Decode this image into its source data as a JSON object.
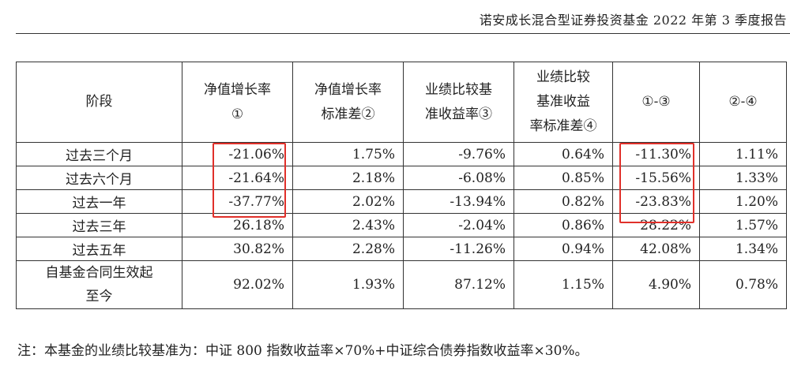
{
  "document": {
    "header_title": "诺安成长混合型证券投资基金 2022 年第 3 季度报告"
  },
  "table": {
    "headers": [
      [
        "阶段"
      ],
      [
        "净值增长率",
        "①"
      ],
      [
        "净值增长率",
        "标准差②"
      ],
      [
        "业绩比较基",
        "准收益率③"
      ],
      [
        "业绩比较",
        "基准收益",
        "率标准差④"
      ],
      [
        "①-③"
      ],
      [
        "②-④"
      ]
    ],
    "rows": [
      {
        "stage": [
          "过去三个月"
        ],
        "values": [
          "-21.06%",
          "1.75%",
          "-9.76%",
          "0.64%",
          "-11.30%",
          "1.11%"
        ]
      },
      {
        "stage": [
          "过去六个月"
        ],
        "values": [
          "-21.64%",
          "2.18%",
          "-6.08%",
          "0.85%",
          "-15.56%",
          "1.33%"
        ]
      },
      {
        "stage": [
          "过去一年"
        ],
        "values": [
          "-37.77%",
          "2.02%",
          "-13.94%",
          "0.82%",
          "-23.83%",
          "1.20%"
        ]
      },
      {
        "stage": [
          "过去三年"
        ],
        "values": [
          "26.18%",
          "2.43%",
          "-2.04%",
          "0.86%",
          "28.22%",
          "1.57%"
        ]
      },
      {
        "stage": [
          "过去五年"
        ],
        "values": [
          "30.82%",
          "2.28%",
          "-11.26%",
          "0.94%",
          "42.08%",
          "1.34%"
        ]
      },
      {
        "stage": [
          "自基金合同生效起",
          "至今"
        ],
        "values": [
          "92.02%",
          "1.93%",
          "87.12%",
          "1.15%",
          "4.90%",
          "0.78%"
        ]
      }
    ]
  },
  "highlights": {
    "color": "#e0302a",
    "columns": [
      "①",
      "①-③"
    ],
    "rows": [
      "过去三个月",
      "过去六个月",
      "过去一年"
    ]
  },
  "footnote": "注：本基金的业绩比较基准为：中证 800 指数收益率×70%+中证综合债券指数收益率×30%。"
}
